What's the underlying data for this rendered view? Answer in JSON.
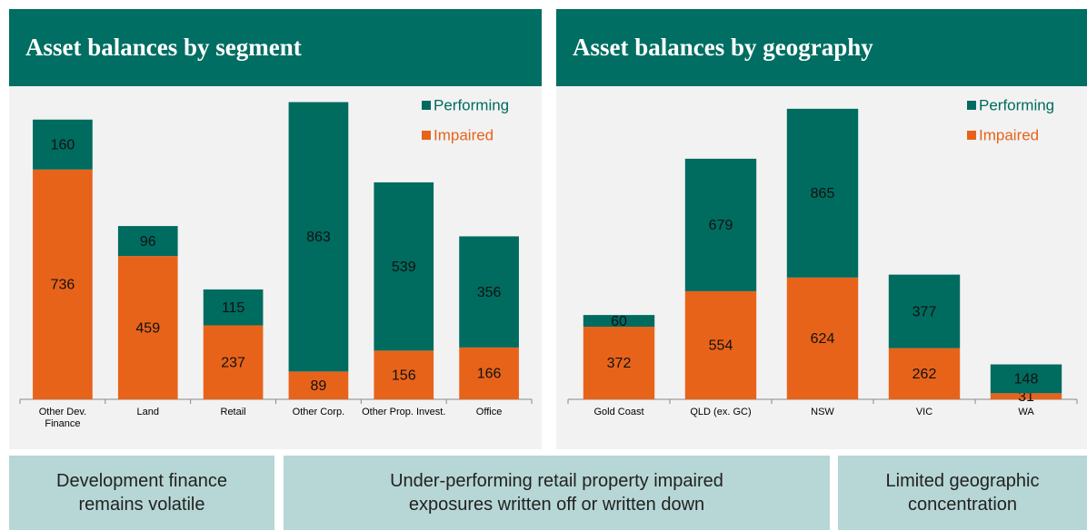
{
  "chart_data": [
    {
      "type": "bar",
      "stacked": true,
      "title": "Asset balances by segment",
      "categories": [
        "Other Dev. Finance",
        "Land",
        "Retail",
        "Other Corp.",
        "Other Prop. Invest.",
        "Office"
      ],
      "series": [
        {
          "name": "Impaired",
          "color": "#e8631a",
          "values": [
            736,
            459,
            237,
            89,
            156,
            166
          ]
        },
        {
          "name": "Performing",
          "color": "#006b5f",
          "values": [
            160,
            96,
            115,
            863,
            539,
            356
          ]
        }
      ],
      "ylim": [
        0,
        1000
      ],
      "legend": "top-right"
    },
    {
      "type": "bar",
      "stacked": true,
      "title": "Asset balances by geography",
      "categories": [
        "Gold Coast",
        "QLD (ex. GC)",
        "NSW",
        "VIC",
        "WA"
      ],
      "series": [
        {
          "name": "Impaired",
          "color": "#e8631a",
          "values": [
            372,
            554,
            624,
            262,
            31
          ]
        },
        {
          "name": "Performing",
          "color": "#006b5f",
          "values": [
            60,
            679,
            865,
            377,
            148
          ]
        }
      ],
      "ylim": [
        0,
        1600
      ],
      "legend": "top-right"
    }
  ],
  "boxes": [
    "Development finance remains volatile",
    "Under-performing retail property impaired exposures written off or written down",
    "Limited geographic concentration"
  ]
}
